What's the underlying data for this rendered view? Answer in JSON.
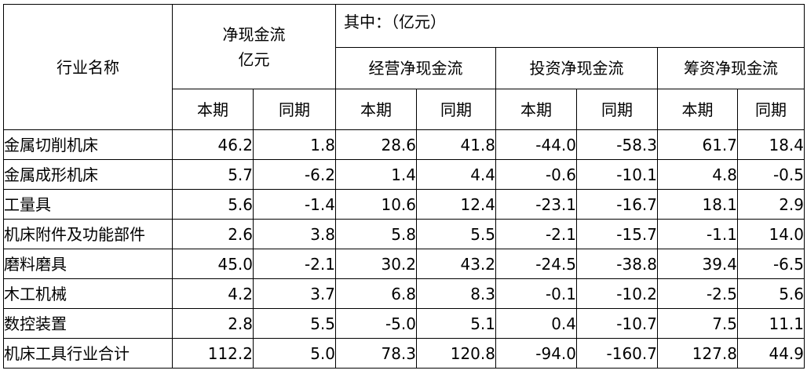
{
  "table": {
    "header": {
      "industry_name": "行业名称",
      "net_cash_flow_line1": "净现金流",
      "net_cash_flow_line2": "亿元",
      "of_which": "其中：（亿元）",
      "operating": "经营净现金流",
      "investing": "投资净现金流",
      "financing": "筹资净现金流",
      "current_period": "本期",
      "prior_period": "同期"
    },
    "rows": [
      {
        "name": "金属切削机床",
        "values": [
          "46.2",
          "1.8",
          "28.6",
          "41.8",
          "-44.0",
          "-58.3",
          "61.7",
          "18.4"
        ]
      },
      {
        "name": "金属成形机床",
        "values": [
          "5.7",
          "-6.2",
          "1.4",
          "4.4",
          "-0.6",
          "-10.1",
          "4.8",
          "-0.5"
        ]
      },
      {
        "name": "工量具",
        "values": [
          "5.6",
          "-1.4",
          "10.6",
          "12.4",
          "-23.1",
          "-16.7",
          "18.1",
          "2.9"
        ]
      },
      {
        "name": "机床附件及功能部件",
        "values": [
          "2.6",
          "3.8",
          "5.8",
          "5.5",
          "-2.1",
          "-15.7",
          "-1.1",
          "14.0"
        ]
      },
      {
        "name": "磨料磨具",
        "values": [
          "45.0",
          "-2.1",
          "30.2",
          "43.2",
          "-24.5",
          "-38.8",
          "39.4",
          "-6.5"
        ]
      },
      {
        "name": "木工机械",
        "values": [
          "4.2",
          "3.7",
          "6.8",
          "8.3",
          "-0.1",
          "-10.2",
          "-2.5",
          "5.6"
        ]
      },
      {
        "name": "数控装置",
        "values": [
          "2.8",
          "5.5",
          "-5.0",
          "5.1",
          "0.4",
          "-10.7",
          "7.5",
          "11.1"
        ]
      },
      {
        "name": "机床工具行业合计",
        "values": [
          "112.2",
          "5.0",
          "78.3",
          "120.8",
          "-94.0",
          "-160.7",
          "127.8",
          "44.9"
        ]
      }
    ]
  }
}
